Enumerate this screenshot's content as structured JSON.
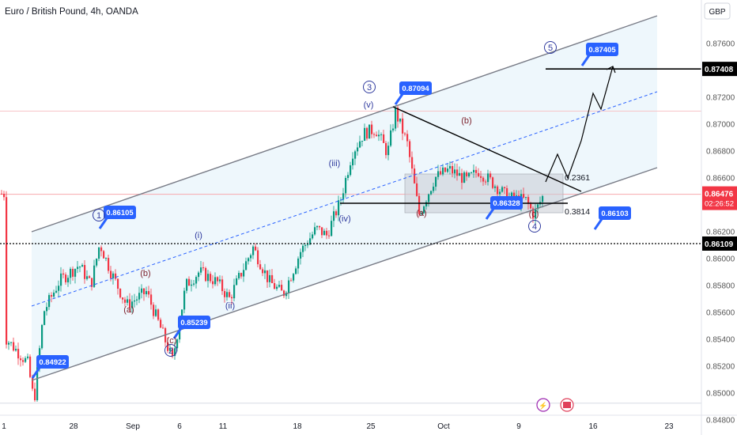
{
  "header": {
    "title": "Euro / British Pound, 4h, OANDA",
    "currency": "GBP"
  },
  "chart_data": {
    "type": "candlestick",
    "title": "Euro / British Pound, 4h, OANDA",
    "xlabel": "",
    "ylabel": "",
    "ylim": [
      0.8465,
      0.8788
    ],
    "x_tick_labels": [
      "1",
      "28",
      "Sep",
      "6",
      "11",
      "18",
      "25",
      "Oct",
      "9",
      "16",
      "23"
    ],
    "y_tick_labels": [
      "0.84800",
      "0.85000",
      "0.85200",
      "0.85400",
      "0.85600",
      "0.85800",
      "0.86000",
      "0.86200",
      "0.86400",
      "0.86600",
      "0.86800",
      "0.87000",
      "0.87200",
      "0.87400",
      "0.87600"
    ],
    "y_ticks": [
      0.848,
      0.85,
      0.852,
      0.854,
      0.856,
      0.858,
      0.86,
      0.862,
      0.864,
      0.866,
      0.868,
      0.87,
      0.872,
      0.874,
      0.876
    ],
    "last_price": {
      "value": 0.86476,
      "label": "0.86476",
      "countdown": "02:26:52"
    },
    "price_tags": [
      {
        "value": 0.87408,
        "label": "0.87408"
      },
      {
        "value": 0.86109,
        "label": "0.86109"
      }
    ],
    "callouts": [
      {
        "label": "0.84922",
        "value": 0.84922
      },
      {
        "label": "0.86105",
        "value": 0.86105
      },
      {
        "label": "0.85239",
        "value": 0.85239
      },
      {
        "label": "0.87094",
        "value": 0.87094
      },
      {
        "label": "0.86328",
        "value": 0.86328
      },
      {
        "label": "0.87405",
        "value": 0.87405
      },
      {
        "label": "0.86103",
        "value": 0.86103
      }
    ],
    "wave_labels": [
      "1",
      "2",
      "3",
      "4",
      "5",
      "(a)",
      "(b)",
      "(c)",
      "(i)",
      "(ii)",
      "(iii)",
      "(iv)",
      "(v)",
      "(a)",
      "(b)",
      "(c)"
    ],
    "fib_labels": [
      "0.2361",
      "0.3814"
    ],
    "colors": {
      "up": "#089981",
      "down": "#f23645",
      "channel": "#787b86",
      "callout": "#2962ff",
      "wave_blue": "#2f3a9e",
      "wave_red": "#7b1f2a"
    }
  }
}
